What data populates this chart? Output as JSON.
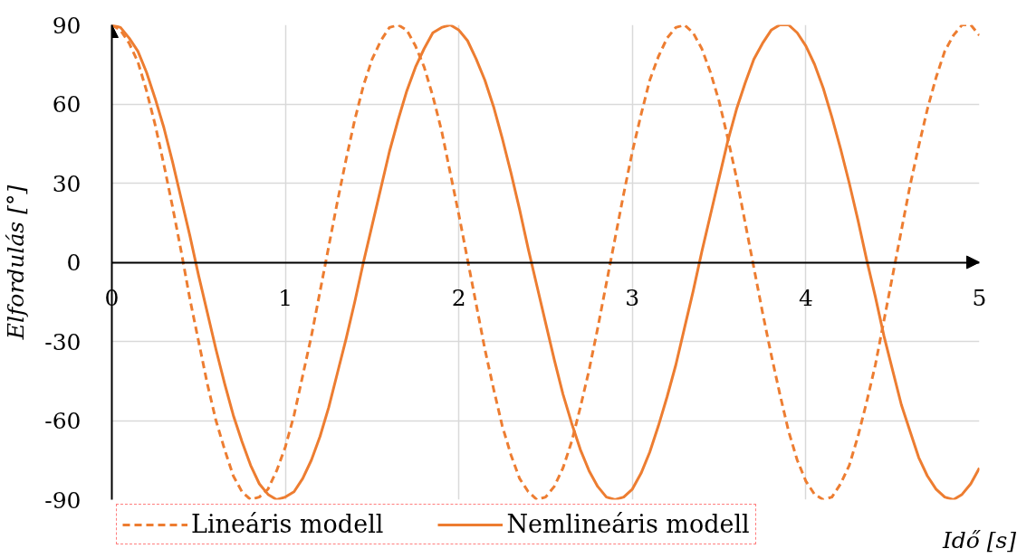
{
  "chart_data": {
    "type": "line",
    "xlabel": "Idő [s]",
    "ylabel": "Elfordulás [°]",
    "x": [
      0,
      0.05,
      0.1,
      0.15,
      0.2,
      0.25,
      0.3,
      0.35,
      0.4,
      0.45,
      0.5,
      0.55,
      0.6,
      0.65,
      0.7,
      0.75,
      0.8,
      0.85,
      0.9,
      0.95,
      1,
      1.05,
      1.1,
      1.15,
      1.2,
      1.25,
      1.3,
      1.35,
      1.4,
      1.45,
      1.5,
      1.55,
      1.6,
      1.65,
      1.7,
      1.75,
      1.8,
      1.85,
      1.9,
      1.95,
      2,
      2.05,
      2.1,
      2.15,
      2.2,
      2.25,
      2.3,
      2.35,
      2.4,
      2.45,
      2.5,
      2.55,
      2.6,
      2.65,
      2.7,
      2.75,
      2.8,
      2.85,
      2.9,
      2.95,
      3,
      3.05,
      3.1,
      3.15,
      3.2,
      3.25,
      3.3,
      3.35,
      3.4,
      3.45,
      3.5,
      3.55,
      3.6,
      3.65,
      3.7,
      3.75,
      3.8,
      3.85,
      3.9,
      3.95,
      4,
      4.05,
      4.1,
      4.15,
      4.2,
      4.25,
      4.3,
      4.35,
      4.4,
      4.45,
      4.5,
      4.55,
      4.6,
      4.65,
      4.7,
      4.75,
      4.8,
      4.85,
      4.9,
      4.95,
      5
    ],
    "xlim": [
      0,
      5
    ],
    "xticks": [
      0,
      1,
      2,
      3,
      4,
      5
    ],
    "ylim": [
      -90,
      90
    ],
    "yticks": [
      -90,
      -60,
      -30,
      0,
      30,
      60,
      90
    ],
    "grid": true,
    "legend": "bottom",
    "series": [
      {
        "name": "Lineáris modell",
        "color": "#ed7d31",
        "line_style": "dashed",
        "values": [
          90,
          88,
          83,
          76,
          65,
          52,
          37,
          21,
          4,
          -14,
          -30,
          -46,
          -60,
          -71,
          -81,
          -87,
          -90,
          -89,
          -86,
          -79,
          -70,
          -58,
          -43,
          -28,
          -11,
          6,
          23,
          39,
          54,
          67,
          77,
          84,
          89,
          90,
          88,
          82,
          74,
          63,
          50,
          34,
          18,
          1,
          -16,
          -33,
          -48,
          -62,
          -73,
          -82,
          -87,
          -90,
          -89,
          -85,
          -78,
          -68,
          -55,
          -41,
          -25,
          -8,
          9,
          26,
          42,
          56,
          69,
          78,
          85,
          89,
          90,
          87,
          81,
          72,
          61,
          47,
          32,
          15,
          -2,
          -19,
          -35,
          -50,
          -64,
          -75,
          -83,
          -88,
          -90,
          -89,
          -84,
          -77,
          -66,
          -53,
          -39,
          -22,
          -5,
          12,
          29,
          44,
          58,
          70,
          80,
          86,
          90,
          90,
          86
        ]
      },
      {
        "name": "Nemlineáris modell",
        "color": "#ed7d31",
        "line_style": "solid",
        "values": [
          90,
          89,
          85,
          80,
          72,
          62,
          51,
          38,
          24,
          10,
          -5,
          -19,
          -33,
          -46,
          -58,
          -68,
          -77,
          -84,
          -88,
          -90,
          -89,
          -87,
          -82,
          -75,
          -66,
          -55,
          -42,
          -29,
          -15,
          0,
          14,
          28,
          42,
          54,
          65,
          74,
          81,
          87,
          89,
          90,
          88,
          84,
          77,
          69,
          59,
          47,
          34,
          20,
          5,
          -9,
          -23,
          -37,
          -50,
          -61,
          -71,
          -79,
          -85,
          -89,
          -90,
          -89,
          -86,
          -80,
          -72,
          -62,
          -51,
          -39,
          -25,
          -11,
          4,
          18,
          32,
          46,
          58,
          68,
          77,
          83,
          88,
          90,
          90,
          87,
          82,
          75,
          66,
          55,
          43,
          30,
          16,
          1,
          -13,
          -28,
          -41,
          -54,
          -64,
          -74,
          -81,
          -86,
          -89,
          -90,
          -88,
          -84,
          -78
        ]
      }
    ]
  }
}
